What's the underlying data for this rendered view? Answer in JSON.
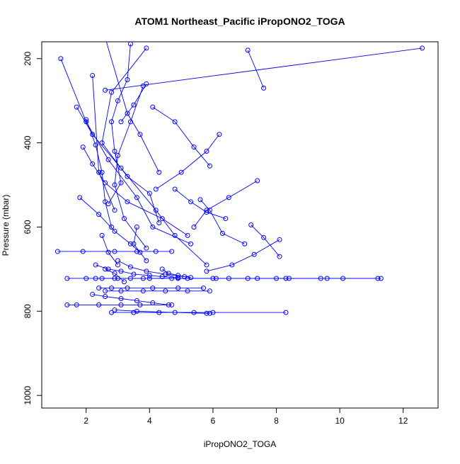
{
  "chart_data": {
    "type": "scatter",
    "title": "ATOM1 Northeast_Pacific iPropONO2_TOGA",
    "xlabel": "iPropONO2_TOGA",
    "ylabel": "Pressure (mbar)",
    "xlim": [
      0.6,
      13.1
    ],
    "ylim": [
      1030,
      160
    ],
    "x_ticks": [
      2,
      4,
      6,
      8,
      10,
      12
    ],
    "x_tick_labels": [
      "2",
      "4",
      "6",
      "8",
      "10",
      "12"
    ],
    "y_ticks": [
      200,
      400,
      600,
      800,
      1000
    ],
    "y_tick_labels": [
      "200",
      "400",
      "600",
      "800",
      "1000"
    ],
    "y_reversed": true,
    "grid": false,
    "marker": "open-circle",
    "color": "#0000ff",
    "series": [
      {
        "x": [
          12.6,
          2.6
        ],
        "y": [
          175,
          275
        ]
      },
      {
        "x": [
          1.2,
          2.0,
          2.7,
          3.6,
          4.1,
          5.3
        ],
        "y": [
          200,
          350,
          440,
          530,
          600,
          640
        ]
      },
      {
        "x": [
          2.6,
          3.3,
          3.7,
          4.3
        ],
        "y": [
          150,
          330,
          380,
          470
        ]
      },
      {
        "x": [
          7.1,
          7.6
        ],
        "y": [
          180,
          270
        ]
      },
      {
        "x": [
          3.4,
          3.3,
          3.0,
          2.8,
          2.9,
          3.1,
          2.7
        ],
        "y": [
          165,
          250,
          300,
          350,
          420,
          495,
          545
        ]
      },
      {
        "x": [
          3.9,
          2.8,
          2.5,
          3.3,
          4.0,
          4.3
        ],
        "y": [
          175,
          280,
          400,
          480,
          520,
          590
        ]
      },
      {
        "x": [
          1.7,
          2.2,
          3.1,
          4.2,
          4.8,
          5.8
        ],
        "y": [
          315,
          380,
          460,
          560,
          620,
          690
        ]
      },
      {
        "x": [
          3.8,
          3.4,
          3.0,
          2.9,
          3.2,
          3.9
        ],
        "y": [
          265,
          350,
          430,
          500,
          580,
          650
        ]
      },
      {
        "x": [
          4.1,
          4.8,
          5.4,
          5.9
        ],
        "y": [
          315,
          350,
          410,
          455
        ]
      },
      {
        "x": [
          6.2,
          5.8,
          5.0,
          4.2
        ],
        "y": [
          380,
          420,
          470,
          510
        ]
      },
      {
        "x": [
          2.0,
          2.3,
          2.5,
          2.6,
          2.8
        ],
        "y": [
          345,
          405,
          470,
          540,
          600
        ]
      },
      {
        "x": [
          1.9,
          2.2,
          2.6,
          3.3,
          4.4,
          5.2
        ],
        "y": [
          410,
          450,
          495,
          540,
          580,
          620
        ]
      },
      {
        "x": [
          7.4,
          6.5,
          5.8,
          5.4
        ],
        "y": [
          490,
          530,
          560,
          600
        ]
      },
      {
        "x": [
          1.8,
          2.4,
          2.9,
          3.4,
          3.7
        ],
        "y": [
          530,
          570,
          610,
          640,
          660
        ]
      },
      {
        "x": [
          4.8,
          5.3,
          5.8,
          6.4
        ],
        "y": [
          510,
          540,
          565,
          580
        ]
      },
      {
        "x": [
          5.6,
          5.9,
          6.3,
          7.0
        ],
        "y": [
          535,
          560,
          615,
          640
        ]
      },
      {
        "x": [
          7.2,
          7.6,
          8.1
        ],
        "y": [
          595,
          625,
          670
        ]
      },
      {
        "x": [
          8.1,
          7.3,
          6.6,
          5.8
        ],
        "y": [
          630,
          665,
          690,
          705
        ]
      },
      {
        "x": [
          1.1,
          1.9,
          2.9,
          3.6,
          4.2,
          4.7
        ],
        "y": [
          658,
          658,
          658,
          658,
          658,
          658
        ]
      },
      {
        "x": [
          1.4,
          2.0,
          2.9,
          3.8,
          4.9,
          6.1,
          7.4,
          8.3,
          9.6,
          11.2
        ],
        "y": [
          722,
          722,
          722,
          722,
          722,
          722,
          722,
          722,
          722,
          722
        ]
      },
      {
        "x": [
          2.3,
          3.0,
          4.0,
          5.2,
          6.5,
          8.4,
          10.1,
          11.3
        ],
        "y": [
          722,
          722,
          722,
          722,
          722,
          722,
          722,
          722
        ]
      },
      {
        "x": [
          2.5,
          3.4,
          4.7,
          6.0,
          7.1,
          8.0,
          9.4
        ],
        "y": [
          722,
          722,
          722,
          722,
          722,
          722,
          722
        ]
      },
      {
        "x": [
          2.4,
          2.8,
          3.3,
          4.1,
          4.9,
          5.7
        ],
        "y": [
          745,
          745,
          745,
          745,
          745,
          745
        ]
      },
      {
        "x": [
          2.6,
          3.1,
          3.8,
          4.5,
          5.2,
          5.9
        ],
        "y": [
          752,
          752,
          752,
          752,
          752,
          752
        ]
      },
      {
        "x": [
          2.2,
          2.6,
          3.1,
          3.6,
          4.1,
          4.6
        ],
        "y": [
          760,
          765,
          770,
          775,
          780,
          785
        ]
      },
      {
        "x": [
          1.4,
          1.7,
          2.4,
          3.1,
          3.7,
          4.7
        ],
        "y": [
          785,
          785,
          785,
          785,
          785,
          785
        ]
      },
      {
        "x": [
          2.8,
          3.5,
          4.3,
          5.4,
          6.0,
          8.3
        ],
        "y": [
          803,
          803,
          803,
          803,
          803,
          803
        ]
      },
      {
        "x": [
          2.9,
          3.6,
          4.8,
          5.8,
          5.9
        ],
        "y": [
          797,
          800,
          803,
          805,
          805
        ]
      },
      {
        "x": [
          2.3,
          2.7,
          3.1,
          3.5,
          4.0,
          4.4,
          4.9
        ],
        "y": [
          690,
          700,
          705,
          712,
          715,
          718,
          720
        ]
      },
      {
        "x": [
          3.0,
          3.4,
          3.9,
          4.5,
          5.1
        ],
        "y": [
          680,
          695,
          705,
          712,
          718
        ]
      },
      {
        "x": [
          2.6,
          2.9,
          3.2
        ],
        "y": [
          700,
          710,
          730
        ]
      },
      {
        "x": [
          4.4,
          4.6,
          4.9,
          5.3
        ],
        "y": [
          700,
          710,
          715,
          720
        ]
      },
      {
        "x": [
          2.5,
          2.7,
          3.0
        ],
        "y": [
          620,
          660,
          690
        ]
      },
      {
        "x": [
          3.6,
          3.5,
          3.9
        ],
        "y": [
          600,
          640,
          680
        ]
      },
      {
        "x": [
          2.2,
          2.4,
          2.9
        ],
        "y": [
          240,
          470,
          560
        ]
      },
      {
        "x": [
          3.9,
          3.5,
          3.1
        ],
        "y": [
          260,
          310,
          350
        ]
      }
    ]
  }
}
